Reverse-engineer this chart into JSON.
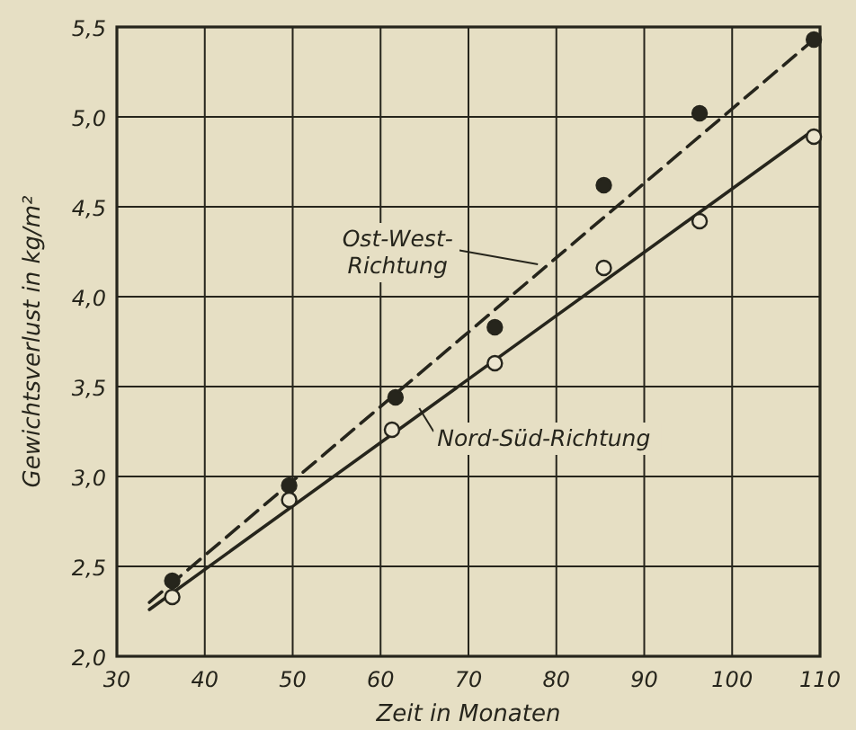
{
  "chart_data": {
    "type": "scatter",
    "xlabel": "Zeit in Monaten",
    "ylabel": "Gewichtsverlust in kg/m²",
    "xlim": [
      30,
      110
    ],
    "ylim": [
      2.0,
      5.5
    ],
    "xticks": [
      30,
      40,
      50,
      60,
      70,
      80,
      90,
      100,
      {
        "value": 110,
        "label": "110"
      }
    ],
    "yticks": [
      {
        "value": 2.0,
        "label": "2,0"
      },
      {
        "value": 2.5,
        "label": "2,5"
      },
      {
        "value": 3.0,
        "label": "3,0"
      },
      {
        "value": 3.5,
        "label": "3,5"
      },
      {
        "value": 4.0,
        "label": "4,0"
      },
      {
        "value": 4.5,
        "label": "4,5"
      },
      {
        "value": 5.0,
        "label": "5,0"
      },
      {
        "value": 5.5,
        "label": "5,5"
      }
    ],
    "grid": true,
    "legend": false,
    "marker": "circle",
    "series": [
      {
        "color": "#26251c",
        "x": [
          36.3,
          49.6,
          61.7,
          73,
          85.4,
          96.3,
          109.3
        ],
        "values": [
          2.42,
          2.95,
          3.44,
          3.83,
          4.62,
          5.02,
          5.43
        ]
      },
      {
        "color": "#ece6cf",
        "x": [
          36.3,
          49.6,
          61.3,
          73,
          85.4,
          96.3,
          109.3
        ],
        "values": [
          2.33,
          2.87,
          3.26,
          3.63,
          4.16,
          4.42,
          4.89
        ]
      },
      {
        "type": "line",
        "color": "#26251c",
        "line_style": "dashed",
        "marker": "none",
        "x": [
          33.7,
          109.3
        ],
        "values": [
          2.3,
          5.43
        ]
      },
      {
        "type": "line",
        "color": "#26251c",
        "line_style": "solid",
        "marker": "none",
        "x": [
          33.7,
          108.5
        ],
        "values": [
          2.26,
          4.9
        ]
      }
    ],
    "annotations": [
      {
        "text": "Ost-West- Richtung",
        "x": 77.9,
        "y": 4.18
      },
      {
        "text": "Nord-Süd-Richtung",
        "x": 64.4,
        "y": 3.38
      }
    ]
  }
}
